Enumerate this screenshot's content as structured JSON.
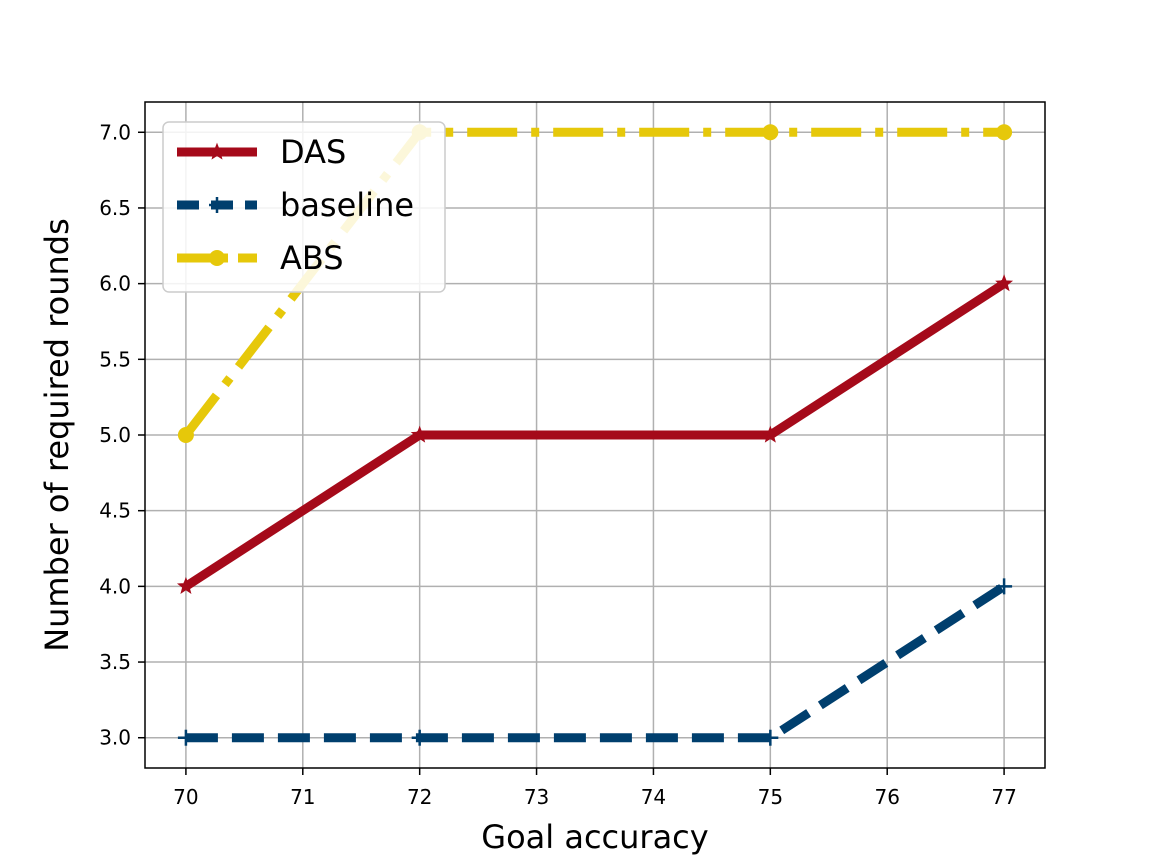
{
  "chart_data": {
    "type": "line",
    "title": "",
    "xlabel": "Goal accuracy",
    "ylabel": "Number of required rounds",
    "x": [
      70,
      72,
      75,
      77
    ],
    "xlim": [
      69.65,
      77.35
    ],
    "ylim": [
      2.8,
      7.2
    ],
    "xticks": [
      70,
      71,
      72,
      73,
      74,
      75,
      76,
      77
    ],
    "yticks": [
      3.0,
      3.5,
      4.0,
      4.5,
      5.0,
      5.5,
      6.0,
      6.5,
      7.0
    ],
    "xtick_labels": [
      "70",
      "71",
      "72",
      "73",
      "74",
      "75",
      "76",
      "77"
    ],
    "ytick_labels": [
      "3.0",
      "3.5",
      "4.0",
      "4.5",
      "5.0",
      "5.5",
      "6.0",
      "6.5",
      "7.0"
    ],
    "grid": true,
    "legend_position": "upper-left",
    "series": [
      {
        "name": "DAS",
        "values": [
          4,
          5,
          5,
          6
        ],
        "color": "#a50a1a",
        "linestyle": "solid",
        "marker": "star"
      },
      {
        "name": "baseline",
        "values": [
          3,
          3,
          3,
          4
        ],
        "color": "#003f6e",
        "linestyle": "dashed",
        "marker": "plus"
      },
      {
        "name": "ABS",
        "values": [
          5,
          7,
          7,
          7
        ],
        "color": "#e6c80a",
        "linestyle": "dashdot",
        "marker": "circle"
      }
    ]
  }
}
